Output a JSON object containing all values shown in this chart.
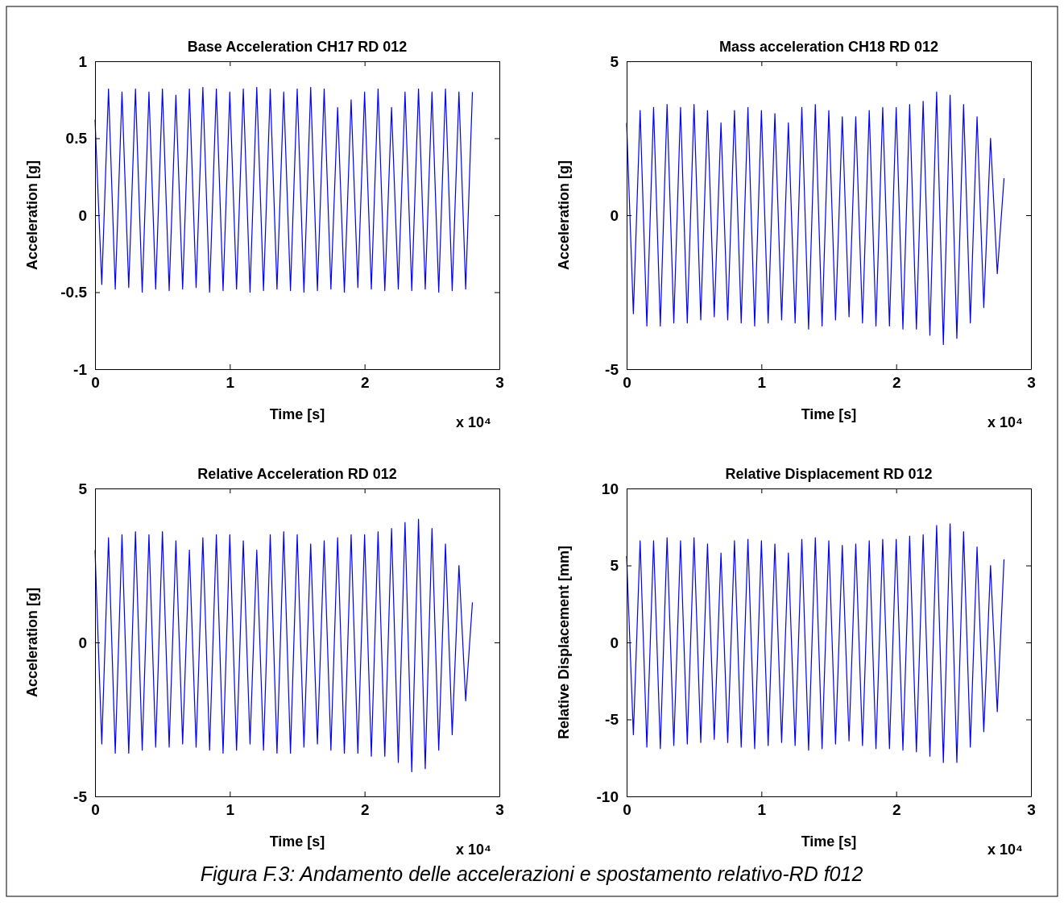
{
  "chart_data": [
    {
      "type": "line",
      "title": "Base Acceleration CH17 RD 012",
      "xlabel": "Time [s]",
      "ylabel": "Acceleration [g]",
      "annotations": [
        "x 10⁴"
      ],
      "x": [
        0,
        0.05,
        0.1,
        0.15,
        0.2,
        0.25,
        0.3,
        0.35,
        0.4,
        0.45,
        0.5,
        0.55,
        0.6,
        0.65,
        0.7,
        0.75,
        0.8,
        0.85,
        0.9,
        0.95,
        1,
        1.05,
        1.1,
        1.15,
        1.2,
        1.25,
        1.3,
        1.35,
        1.4,
        1.45,
        1.5,
        1.55,
        1.6,
        1.65,
        1.7,
        1.75,
        1.8,
        1.85,
        1.9,
        1.95,
        2,
        2.05,
        2.1,
        2.15,
        2.2,
        2.25,
        2.3,
        2.35,
        2.4,
        2.45,
        2.5,
        2.55,
        2.6,
        2.65,
        2.7,
        2.75,
        2.8
      ],
      "series": [
        {
          "color": "#0000ff",
          "values": [
            0.62,
            -0.45,
            0.82,
            -0.48,
            0.8,
            -0.47,
            0.82,
            -0.5,
            0.8,
            -0.48,
            0.82,
            -0.49,
            0.78,
            -0.48,
            0.82,
            -0.47,
            0.83,
            -0.5,
            0.82,
            -0.49,
            0.8,
            -0.48,
            0.82,
            -0.5,
            0.83,
            -0.49,
            0.82,
            -0.48,
            0.8,
            -0.49,
            0.82,
            -0.5,
            0.83,
            -0.49,
            0.82,
            -0.48,
            0.7,
            -0.5,
            0.75,
            -0.47,
            0.8,
            -0.48,
            0.82,
            -0.49,
            0.7,
            -0.48,
            0.8,
            -0.49,
            0.82,
            -0.48,
            0.8,
            -0.5,
            0.82,
            -0.49,
            0.8,
            -0.48,
            0.8
          ]
        }
      ],
      "xlim": [
        0,
        3
      ],
      "xticks": [
        0,
        1,
        2,
        3
      ],
      "ylim": [
        -1,
        1
      ],
      "yticks": [
        -1,
        -0.5,
        0,
        0.5,
        1
      ]
    },
    {
      "type": "line",
      "title": "Mass acceleration CH18 RD 012",
      "xlabel": "Time [s]",
      "ylabel": "Acceleration [g]",
      "annotations": [
        "x 10⁴"
      ],
      "x": [
        0,
        0.05,
        0.1,
        0.15,
        0.2,
        0.25,
        0.3,
        0.35,
        0.4,
        0.45,
        0.5,
        0.55,
        0.6,
        0.65,
        0.7,
        0.75,
        0.8,
        0.85,
        0.9,
        0.95,
        1,
        1.05,
        1.1,
        1.15,
        1.2,
        1.25,
        1.3,
        1.35,
        1.4,
        1.45,
        1.5,
        1.55,
        1.6,
        1.65,
        1.7,
        1.75,
        1.8,
        1.85,
        1.9,
        1.95,
        2,
        2.05,
        2.1,
        2.15,
        2.2,
        2.25,
        2.3,
        2.35,
        2.4,
        2.45,
        2.5,
        2.55,
        2.6,
        2.65,
        2.7,
        2.75,
        2.8
      ],
      "series": [
        {
          "color": "#0000ff",
          "values": [
            3.0,
            -3.2,
            3.4,
            -3.6,
            3.5,
            -3.6,
            3.6,
            -3.5,
            3.5,
            -3.5,
            3.6,
            -3.4,
            3.4,
            -3.3,
            3.0,
            -3.4,
            3.4,
            -3.5,
            3.5,
            -3.6,
            3.4,
            -3.5,
            3.3,
            -3.4,
            3.0,
            -3.5,
            3.5,
            -3.7,
            3.6,
            -3.6,
            3.4,
            -3.4,
            3.2,
            -3.3,
            3.2,
            -3.5,
            3.4,
            -3.6,
            3.5,
            -3.6,
            3.5,
            -3.7,
            3.6,
            -3.7,
            3.7,
            -3.9,
            4.0,
            -4.2,
            3.9,
            -4.0,
            3.6,
            -3.5,
            3.2,
            -3.0,
            2.5,
            -1.9,
            1.2
          ]
        }
      ],
      "xlim": [
        0,
        3
      ],
      "xticks": [
        0,
        1,
        2,
        3
      ],
      "ylim": [
        -5,
        5
      ],
      "yticks": [
        -5,
        0,
        5
      ]
    },
    {
      "type": "line",
      "title": "Relative Acceleration RD 012",
      "xlabel": "Time [s]",
      "ylabel": "Acceleration [g]",
      "annotations": [
        "x 10⁴"
      ],
      "x": [
        0,
        0.05,
        0.1,
        0.15,
        0.2,
        0.25,
        0.3,
        0.35,
        0.4,
        0.45,
        0.5,
        0.55,
        0.6,
        0.65,
        0.7,
        0.75,
        0.8,
        0.85,
        0.9,
        0.95,
        1,
        1.05,
        1.1,
        1.15,
        1.2,
        1.25,
        1.3,
        1.35,
        1.4,
        1.45,
        1.5,
        1.55,
        1.6,
        1.65,
        1.7,
        1.75,
        1.8,
        1.85,
        1.9,
        1.95,
        2,
        2.05,
        2.1,
        2.15,
        2.2,
        2.25,
        2.3,
        2.35,
        2.4,
        2.45,
        2.5,
        2.55,
        2.6,
        2.65,
        2.7,
        2.75,
        2.8
      ],
      "series": [
        {
          "color": "#0000ff",
          "values": [
            3.0,
            -3.3,
            3.4,
            -3.6,
            3.5,
            -3.6,
            3.6,
            -3.5,
            3.5,
            -3.4,
            3.6,
            -3.4,
            3.3,
            -3.3,
            3.0,
            -3.4,
            3.4,
            -3.5,
            3.5,
            -3.6,
            3.5,
            -3.5,
            3.3,
            -3.3,
            3.0,
            -3.5,
            3.5,
            -3.6,
            3.6,
            -3.6,
            3.5,
            -3.4,
            3.2,
            -3.3,
            3.3,
            -3.5,
            3.4,
            -3.6,
            3.5,
            -3.6,
            3.5,
            -3.7,
            3.6,
            -3.7,
            3.7,
            -3.9,
            3.9,
            -4.2,
            4.0,
            -4.1,
            3.7,
            -3.5,
            3.2,
            -3.0,
            2.5,
            -1.9,
            1.3
          ]
        }
      ],
      "xlim": [
        0,
        3
      ],
      "xticks": [
        0,
        1,
        2,
        3
      ],
      "ylim": [
        -5,
        5
      ],
      "yticks": [
        -5,
        0,
        5
      ]
    },
    {
      "type": "line",
      "title": "Relative Displacement RD 012",
      "xlabel": "Time [s]",
      "ylabel": "Relative Displacement [mm]",
      "annotations": [
        "x 10⁴",
        "Figura F.3: Andamento delle accelerazioni e spostamento relativo-RD  f012"
      ],
      "x": [
        0,
        0.05,
        0.1,
        0.15,
        0.2,
        0.25,
        0.3,
        0.35,
        0.4,
        0.45,
        0.5,
        0.55,
        0.6,
        0.65,
        0.7,
        0.75,
        0.8,
        0.85,
        0.9,
        0.95,
        1,
        1.05,
        1.1,
        1.15,
        1.2,
        1.25,
        1.3,
        1.35,
        1.4,
        1.45,
        1.5,
        1.55,
        1.6,
        1.65,
        1.7,
        1.75,
        1.8,
        1.85,
        1.9,
        1.95,
        2,
        2.05,
        2.1,
        2.15,
        2.2,
        2.25,
        2.3,
        2.35,
        2.4,
        2.45,
        2.5,
        2.55,
        2.6,
        2.65,
        2.7,
        2.75,
        2.8
      ],
      "series": [
        {
          "color": "#0000ff",
          "values": [
            5.6,
            -6.0,
            6.6,
            -6.8,
            6.6,
            -6.9,
            6.8,
            -6.7,
            6.6,
            -6.6,
            6.8,
            -6.5,
            6.4,
            -6.3,
            5.8,
            -6.5,
            6.6,
            -6.8,
            6.7,
            -6.9,
            6.6,
            -6.7,
            6.4,
            -6.5,
            5.8,
            -6.7,
            6.7,
            -7.0,
            6.8,
            -6.9,
            6.6,
            -6.6,
            6.3,
            -6.4,
            6.4,
            -6.7,
            6.6,
            -6.9,
            6.7,
            -6.9,
            6.7,
            -7.0,
            6.9,
            -7.1,
            7.0,
            -7.4,
            7.6,
            -7.8,
            7.7,
            -7.8,
            7.2,
            -6.8,
            6.2,
            -5.8,
            5.0,
            -4.5,
            5.4
          ]
        }
      ],
      "xlim": [
        0,
        3
      ],
      "xticks": [
        0,
        1,
        2,
        3
      ],
      "ylim": [
        -10,
        10
      ],
      "yticks": [
        -10,
        -5,
        0,
        5,
        10
      ]
    }
  ]
}
